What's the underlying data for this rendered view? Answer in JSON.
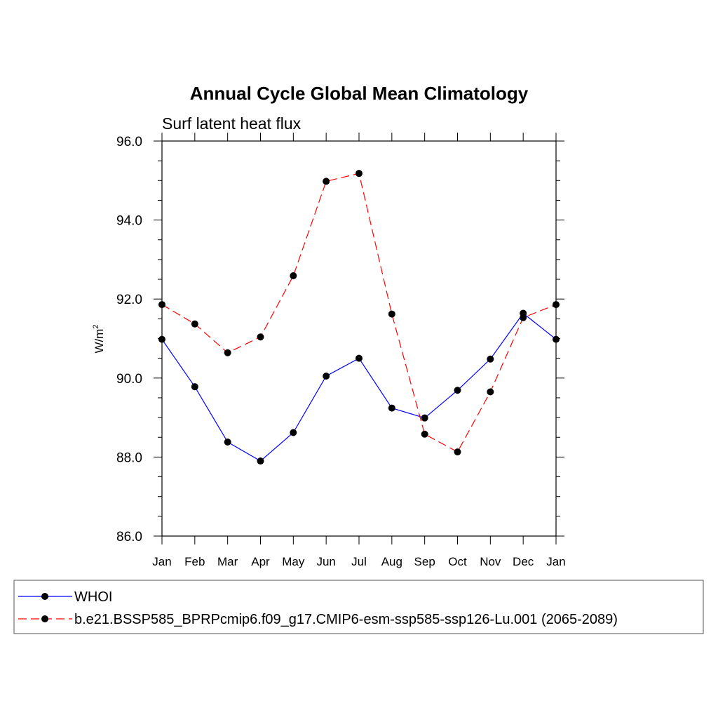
{
  "chart_data": {
    "type": "line",
    "title": "Annual Cycle Global Mean Climatology",
    "subtitle": "Surf latent heat flux",
    "ylabel": "W/m",
    "ylabel_superscript": "2",
    "ylim": [
      86.0,
      96.0
    ],
    "yticks": [
      "96.0",
      "94.0",
      "92.0",
      "90.0",
      "88.0",
      "86.0"
    ],
    "ytick_values": [
      96,
      94,
      92,
      90,
      88,
      86
    ],
    "categories": [
      "Jan",
      "Feb",
      "Mar",
      "Apr",
      "May",
      "Jun",
      "Jul",
      "Aug",
      "Sep",
      "Oct",
      "Nov",
      "Dec",
      "Jan"
    ],
    "grid": false,
    "legend_position": "bottom",
    "series": [
      {
        "name": "WHOI",
        "color": "#0000ff",
        "line_style": "solid",
        "marker": "filled-circle",
        "values": [
          90.98,
          89.78,
          88.38,
          87.9,
          88.62,
          90.05,
          90.5,
          89.24,
          88.99,
          89.69,
          90.48,
          91.64,
          90.98
        ]
      },
      {
        "name": "b.e21.BSSP585_BPRPcmip6.f09_g17.CMIP6-esm-ssp585-ssp126-Lu.001 (2065-2089)",
        "color": "#ff0000",
        "line_style": "dashed",
        "marker": "filled-circle",
        "values": [
          91.86,
          91.37,
          90.64,
          91.04,
          92.59,
          94.98,
          95.18,
          91.62,
          88.58,
          88.13,
          89.65,
          91.53,
          91.86
        ]
      }
    ]
  }
}
